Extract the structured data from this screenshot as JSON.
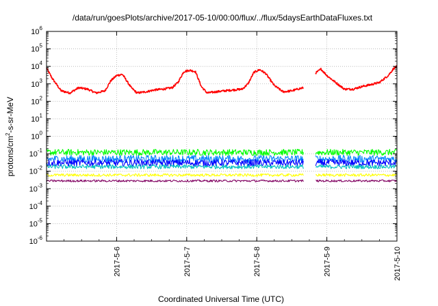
{
  "chart_data": {
    "type": "line",
    "title": "/data/run/goesPlots/archive/2017-05-10/00:00/flux/../flux/5daysEarthDataFluxes.txt",
    "xlabel": "Coordinated Universal Time (UTC)",
    "ylabel_parts": [
      "protons/cm",
      "2",
      "-s-sr-MeV"
    ],
    "x_scale": "time",
    "x_range_days": [
      "2017-05-05",
      "2017-05-10"
    ],
    "x_ticks": [
      "2017-5-6",
      "2017-5-7",
      "2017-5-8",
      "2017-5-9",
      "2017-5-10"
    ],
    "y_scale": "log",
    "ylim": [
      1e-06,
      1000000.0
    ],
    "y_tick_exponents": [
      -6,
      -5,
      -4,
      -3,
      -2,
      -1,
      0,
      1,
      2,
      3,
      4,
      5,
      6
    ],
    "y_tick_base": "10",
    "grid": true,
    "data_gap": [
      "2017-05-08 16:00",
      "2017-05-08 20:00"
    ],
    "series": [
      {
        "color": "#ff0000",
        "x": [
          "2017-05-05 00:00",
          "2017-05-05 02:00",
          "2017-05-05 05:00",
          "2017-05-05 08:00",
          "2017-05-05 11:00",
          "2017-05-05 14:00",
          "2017-05-05 17:00",
          "2017-05-05 20:00",
          "2017-05-05 22:00",
          "2017-05-06 00:00",
          "2017-05-06 02:00",
          "2017-05-06 05:00",
          "2017-05-06 07:00",
          "2017-05-06 10:00",
          "2017-05-06 13:00",
          "2017-05-06 16:00",
          "2017-05-06 19:00",
          "2017-05-06 21:00",
          "2017-05-06 23:00",
          "2017-05-07 01:00",
          "2017-05-07 03:00",
          "2017-05-07 05:00",
          "2017-05-07 07:00",
          "2017-05-07 10:00",
          "2017-05-07 13:00",
          "2017-05-07 16:00",
          "2017-05-07 19:00",
          "2017-05-07 21:00",
          "2017-05-07 23:00",
          "2017-05-08 01:00",
          "2017-05-08 03:00",
          "2017-05-08 06:00",
          "2017-05-08 09:00",
          "2017-05-08 12:00",
          "2017-05-08 14:00",
          "2017-05-08 16:00",
          "2017-05-08 20:00",
          "2017-05-08 22:00",
          "2017-05-09 00:00",
          "2017-05-09 03:00",
          "2017-05-09 06:00",
          "2017-05-09 09:00",
          "2017-05-09 12:00",
          "2017-05-09 15:00",
          "2017-05-09 18:00",
          "2017-05-09 21:00",
          "2017-05-09 23:00",
          "2017-05-10 00:00"
        ],
        "values": [
          8000,
          2000,
          400,
          300,
          600,
          500,
          300,
          400,
          1500,
          3000,
          3500,
          600,
          300,
          350,
          450,
          500,
          600,
          1200,
          5000,
          6000,
          5000,
          700,
          300,
          350,
          400,
          450,
          500,
          1000,
          4500,
          6500,
          4000,
          800,
          350,
          400,
          500,
          600,
          4000,
          7000,
          3000,
          1200,
          500,
          500,
          700,
          900,
          1200,
          3000,
          8000,
          10000
        ]
      },
      {
        "color": "#00ff00",
        "x": [
          "2017-05-05 00:00",
          "2017-05-08 16:00",
          "2017-05-08 20:00",
          "2017-05-10 00:00"
        ],
        "values": [
          0.12,
          0.12,
          0.12,
          0.12
        ]
      },
      {
        "color": "#0080ff",
        "x": [
          "2017-05-05 00:00",
          "2017-05-08 16:00",
          "2017-05-08 20:00",
          "2017-05-10 00:00"
        ],
        "values": [
          0.05,
          0.05,
          0.05,
          0.05
        ]
      },
      {
        "color": "#0000ff",
        "x": [
          "2017-05-05 00:00",
          "2017-05-08 16:00",
          "2017-05-08 20:00",
          "2017-05-10 00:00"
        ],
        "values": [
          0.03,
          0.03,
          0.03,
          0.03
        ]
      },
      {
        "color": "#00c0c0",
        "x": [
          "2017-05-05 00:00",
          "2017-05-08 16:00",
          "2017-05-08 20:00",
          "2017-05-10 00:00"
        ],
        "values": [
          0.018,
          0.018,
          0.018,
          0.018
        ]
      },
      {
        "color": "#ffff00",
        "x": [
          "2017-05-05 00:00",
          "2017-05-08 16:00",
          "2017-05-08 20:00",
          "2017-05-10 00:00"
        ],
        "values": [
          0.006,
          0.006,
          0.006,
          0.006
        ]
      },
      {
        "color": "#800060",
        "x": [
          "2017-05-05 00:00",
          "2017-05-08 16:00",
          "2017-05-08 20:00",
          "2017-05-10 00:00"
        ],
        "values": [
          0.0028,
          0.0028,
          0.0028,
          0.0028
        ]
      }
    ]
  }
}
